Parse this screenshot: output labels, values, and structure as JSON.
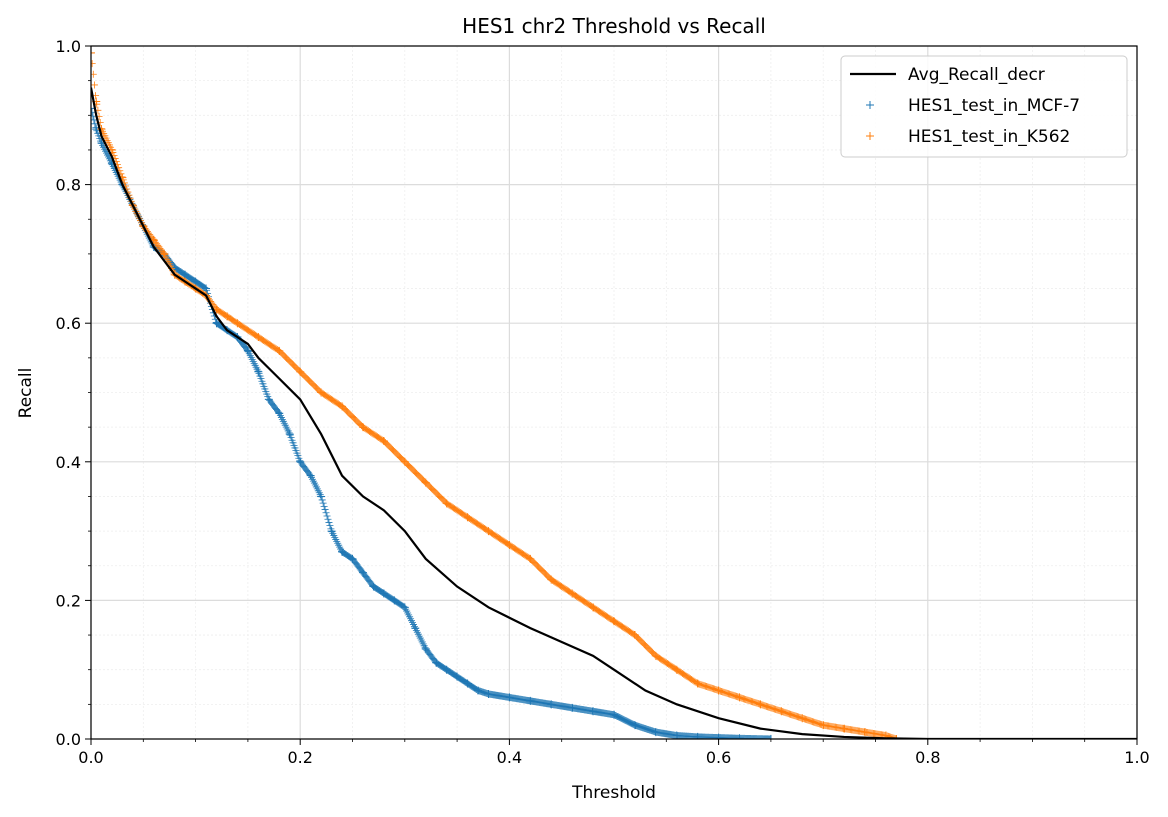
{
  "chart_data": {
    "type": "line",
    "title": "HES1 chr2 Threshold vs Recall",
    "xlabel": "Threshold",
    "ylabel": "Recall",
    "xlim": [
      0,
      1
    ],
    "ylim": [
      0,
      1
    ],
    "xticks": [
      0.0,
      0.2,
      0.4,
      0.6,
      0.8,
      1.0
    ],
    "yticks": [
      0.0,
      0.2,
      0.4,
      0.6,
      0.8,
      1.0
    ],
    "xtick_labels": [
      "0.0",
      "0.2",
      "0.4",
      "0.6",
      "0.8",
      "1.0"
    ],
    "ytick_labels": [
      "0.0",
      "0.2",
      "0.4",
      "0.6",
      "0.8",
      "1.0"
    ],
    "grid": true,
    "minor_grid": true,
    "legend_position": "top-right",
    "series": [
      {
        "name": "Avg_Recall_decr",
        "style": "line",
        "color": "#000000",
        "x": [
          0.0,
          0.005,
          0.01,
          0.02,
          0.03,
          0.04,
          0.05,
          0.06,
          0.07,
          0.08,
          0.09,
          0.1,
          0.11,
          0.12,
          0.13,
          0.14,
          0.15,
          0.16,
          0.18,
          0.2,
          0.22,
          0.24,
          0.26,
          0.28,
          0.3,
          0.32,
          0.35,
          0.38,
          0.4,
          0.42,
          0.45,
          0.48,
          0.5,
          0.53,
          0.56,
          0.6,
          0.64,
          0.68,
          0.72,
          0.76,
          0.8,
          0.9,
          1.0
        ],
        "y": [
          0.94,
          0.9,
          0.87,
          0.84,
          0.8,
          0.77,
          0.74,
          0.71,
          0.69,
          0.67,
          0.66,
          0.65,
          0.64,
          0.61,
          0.59,
          0.58,
          0.57,
          0.55,
          0.52,
          0.49,
          0.44,
          0.38,
          0.35,
          0.33,
          0.3,
          0.26,
          0.22,
          0.19,
          0.175,
          0.16,
          0.14,
          0.12,
          0.1,
          0.07,
          0.05,
          0.03,
          0.015,
          0.007,
          0.003,
          0.001,
          0.0,
          0.0,
          0.0
        ]
      },
      {
        "name": "HES1_test_in_MCF-7",
        "style": "scatter",
        "marker": "+",
        "color": "#1f77b4",
        "x": [
          0.0,
          0.005,
          0.01,
          0.02,
          0.03,
          0.04,
          0.05,
          0.06,
          0.07,
          0.08,
          0.09,
          0.1,
          0.11,
          0.12,
          0.13,
          0.14,
          0.15,
          0.16,
          0.17,
          0.18,
          0.19,
          0.2,
          0.21,
          0.22,
          0.23,
          0.24,
          0.25,
          0.26,
          0.27,
          0.28,
          0.29,
          0.3,
          0.31,
          0.32,
          0.33,
          0.34,
          0.35,
          0.36,
          0.37,
          0.38,
          0.4,
          0.42,
          0.44,
          0.46,
          0.48,
          0.5,
          0.52,
          0.54,
          0.56,
          0.58,
          0.6,
          0.62,
          0.65
        ],
        "y": [
          0.91,
          0.88,
          0.86,
          0.83,
          0.8,
          0.77,
          0.74,
          0.71,
          0.7,
          0.68,
          0.67,
          0.66,
          0.65,
          0.6,
          0.59,
          0.58,
          0.56,
          0.53,
          0.49,
          0.47,
          0.44,
          0.4,
          0.38,
          0.35,
          0.3,
          0.27,
          0.26,
          0.24,
          0.22,
          0.21,
          0.2,
          0.19,
          0.16,
          0.13,
          0.11,
          0.1,
          0.09,
          0.08,
          0.07,
          0.065,
          0.06,
          0.055,
          0.05,
          0.045,
          0.04,
          0.035,
          0.02,
          0.01,
          0.005,
          0.003,
          0.002,
          0.001,
          0.0
        ]
      },
      {
        "name": "HES1_test_in_K562",
        "style": "scatter",
        "marker": "+",
        "color": "#ff7f0e",
        "x": [
          0.0,
          0.005,
          0.01,
          0.02,
          0.03,
          0.04,
          0.05,
          0.06,
          0.07,
          0.08,
          0.09,
          0.1,
          0.11,
          0.12,
          0.13,
          0.14,
          0.16,
          0.18,
          0.2,
          0.22,
          0.24,
          0.26,
          0.28,
          0.3,
          0.32,
          0.34,
          0.36,
          0.38,
          0.4,
          0.42,
          0.44,
          0.46,
          0.48,
          0.5,
          0.52,
          0.54,
          0.56,
          0.58,
          0.6,
          0.62,
          0.64,
          0.66,
          0.68,
          0.7,
          0.72,
          0.74,
          0.76,
          0.77
        ],
        "y": [
          0.99,
          0.92,
          0.88,
          0.85,
          0.81,
          0.77,
          0.74,
          0.72,
          0.7,
          0.67,
          0.66,
          0.65,
          0.64,
          0.62,
          0.61,
          0.6,
          0.58,
          0.56,
          0.53,
          0.5,
          0.48,
          0.45,
          0.43,
          0.4,
          0.37,
          0.34,
          0.32,
          0.3,
          0.28,
          0.26,
          0.23,
          0.21,
          0.19,
          0.17,
          0.15,
          0.12,
          0.1,
          0.08,
          0.07,
          0.06,
          0.05,
          0.04,
          0.03,
          0.02,
          0.015,
          0.01,
          0.005,
          0.0
        ]
      }
    ]
  }
}
